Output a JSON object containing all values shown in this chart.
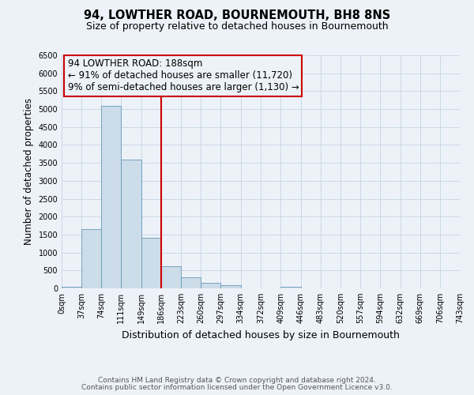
{
  "title": "94, LOWTHER ROAD, BOURNEMOUTH, BH8 8NS",
  "subtitle": "Size of property relative to detached houses in Bournemouth",
  "xlabel": "Distribution of detached houses by size in Bournemouth",
  "ylabel": "Number of detached properties",
  "bar_edges": [
    0,
    37,
    74,
    111,
    149,
    186,
    223,
    260,
    297,
    334,
    372,
    409,
    446,
    483,
    520,
    557,
    594,
    632,
    669,
    706,
    743
  ],
  "bar_heights": [
    50,
    1650,
    5080,
    3600,
    1420,
    620,
    300,
    150,
    80,
    0,
    0,
    50,
    0,
    0,
    0,
    0,
    0,
    0,
    0,
    0
  ],
  "bar_color": "#ccdce8",
  "bar_edge_color": "#6699bb",
  "property_line_x": 186,
  "property_line_color": "#cc0000",
  "annotation_line1": "94 LOWTHER ROAD: 188sqm",
  "annotation_line2": "← 91% of detached houses are smaller (11,720)",
  "annotation_line3": "9% of semi-detached houses are larger (1,130) →",
  "annotation_box_edge_color": "#cc0000",
  "ylim": [
    0,
    6500
  ],
  "yticks": [
    0,
    500,
    1000,
    1500,
    2000,
    2500,
    3000,
    3500,
    4000,
    4500,
    5000,
    5500,
    6000,
    6500
  ],
  "tick_labels": [
    "0sqm",
    "37sqm",
    "74sqm",
    "111sqm",
    "149sqm",
    "186sqm",
    "223sqm",
    "260sqm",
    "297sqm",
    "334sqm",
    "372sqm",
    "409sqm",
    "446sqm",
    "483sqm",
    "520sqm",
    "557sqm",
    "594sqm",
    "632sqm",
    "669sqm",
    "706sqm",
    "743sqm"
  ],
  "grid_color": "#c8d8e8",
  "bg_color": "#edf2f8",
  "footer_line1": "Contains HM Land Registry data © Crown copyright and database right 2024.",
  "footer_line2": "Contains public sector information licensed under the Open Government Licence v3.0.",
  "title_fontsize": 10.5,
  "subtitle_fontsize": 9,
  "xlabel_fontsize": 9,
  "ylabel_fontsize": 8.5,
  "tick_fontsize": 7,
  "footer_fontsize": 6.5,
  "annot_fontsize": 8.5
}
